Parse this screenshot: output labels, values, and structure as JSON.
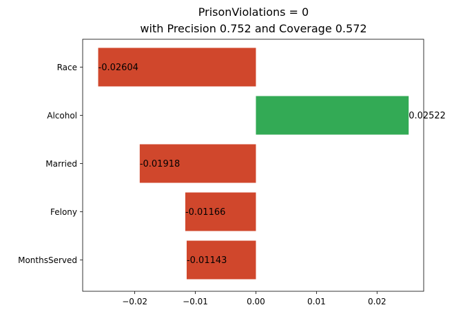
{
  "chart_data": {
    "type": "bar",
    "orientation": "horizontal",
    "title_lines": [
      "PrisonViolations = 0",
      "with Precision 0.752 and Coverage 0.572"
    ],
    "categories": [
      "Race",
      "Alcohol",
      "Married",
      "Felony",
      "MonthsServed"
    ],
    "values": [
      -0.02604,
      0.02522,
      -0.01918,
      -0.01166,
      -0.01143
    ],
    "data_labels": [
      "-0.02604",
      "0.02522",
      "-0.01918",
      "-0.01166",
      "-0.01143"
    ],
    "xlim": [
      -0.0286,
      0.0277
    ],
    "xticks": [
      -0.02,
      -0.01,
      0.0,
      0.01,
      0.02
    ],
    "xtick_labels": [
      "−0.02",
      "−0.01",
      "0.00",
      "0.01",
      "0.02"
    ],
    "xlabel": "",
    "ylabel": "",
    "grid": false,
    "colors": {
      "negative": "#d0472c",
      "positive": "#33aa55"
    }
  }
}
